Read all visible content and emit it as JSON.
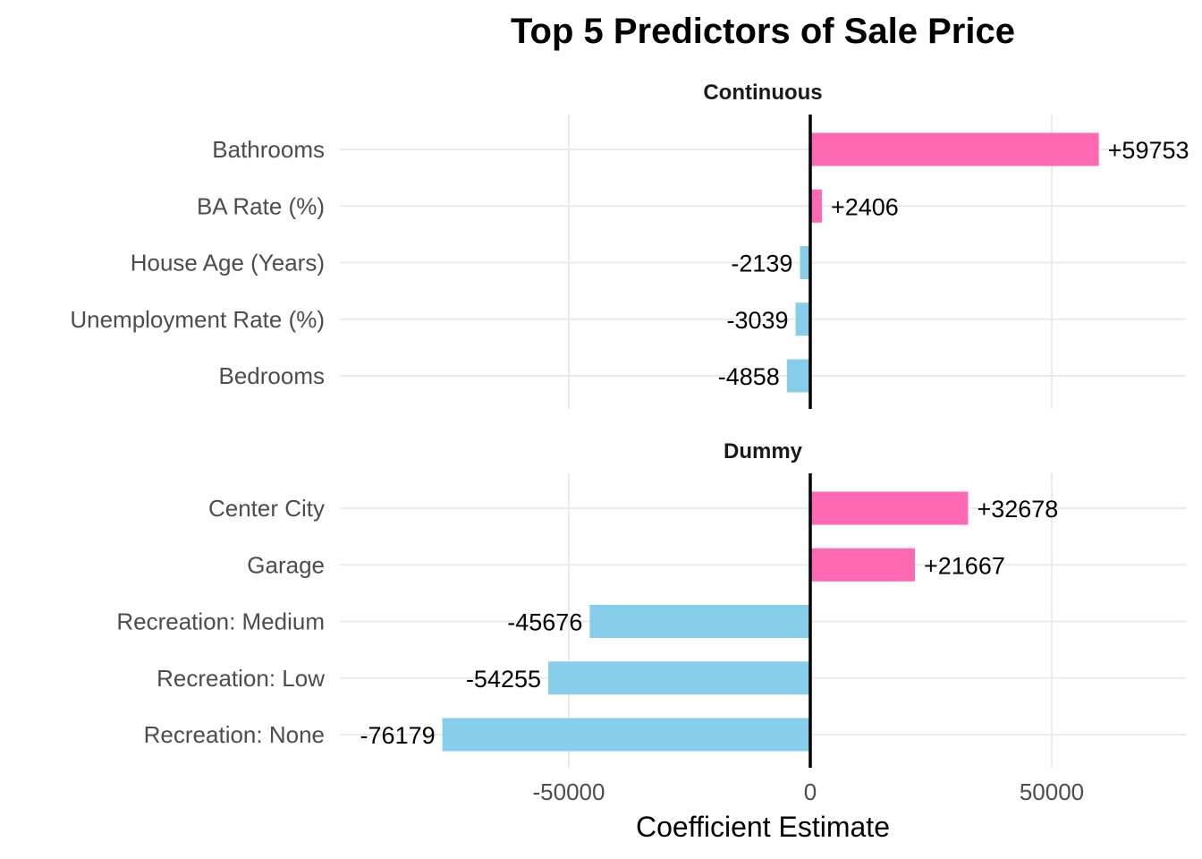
{
  "chart_data": {
    "type": "bar",
    "orientation": "horizontal",
    "title": "Top 5 Predictors of Sale Price",
    "xlabel": "Coefficient Estimate",
    "ylabel": "",
    "xticks": [
      -50000,
      0,
      50000
    ],
    "xtick_labels": [
      "-50000",
      "0",
      "50000"
    ],
    "grid": true,
    "legend": "none",
    "colors": {
      "positive": "#FF69B4",
      "negative": "#87CEEB",
      "zero_line": "#000000",
      "grid": "#EBEBEB"
    },
    "panels": [
      {
        "name": "Continuous",
        "categories": [
          "Bathrooms",
          "BA Rate (%)",
          "House Age (Years)",
          "Unemployment Rate (%)",
          "Bedrooms"
        ],
        "values": [
          59753,
          2406,
          -2139,
          -3039,
          -4858
        ],
        "labels": [
          "+59753",
          "+2406",
          "-2139",
          "-3039",
          "-4858"
        ]
      },
      {
        "name": "Dummy",
        "categories": [
          "Center City",
          "Garage",
          "Recreation: Medium",
          "Recreation: Low",
          "Recreation: None"
        ],
        "values": [
          32678,
          21667,
          -45676,
          -54255,
          -76179
        ],
        "labels": [
          "+32678",
          "+21667",
          "-45676",
          "-54255",
          "-76179"
        ]
      }
    ]
  }
}
